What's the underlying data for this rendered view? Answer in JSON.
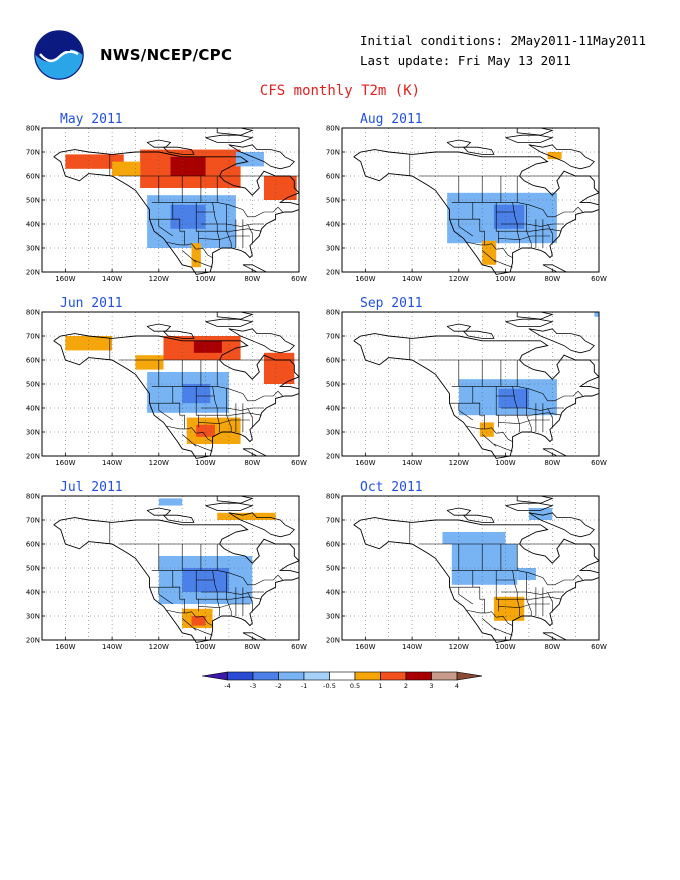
{
  "header": {
    "agency": "NWS/NCEP/CPC",
    "initial_conditions": "Initial conditions: 2May2011-11May2011",
    "last_update": "Last update: Fri May 13 2011",
    "title": "CFS monthly T2m (K)"
  },
  "axes": {
    "y_ticks": [
      "80N",
      "70N",
      "60N",
      "50N",
      "40N",
      "30N",
      "20N"
    ],
    "x_ticks": [
      "160W",
      "140W",
      "120W",
      "100W",
      "80W",
      "60W"
    ]
  },
  "panels": [
    {
      "title": "May 2011",
      "anoms": [
        {
          "t": "pos",
          "lvl": 2,
          "b": [
            -160,
            63,
            -135,
            69
          ]
        },
        {
          "t": "pos",
          "lvl": 2,
          "b": [
            -128,
            55,
            -85,
            71
          ]
        },
        {
          "t": "pos",
          "lvl": 1,
          "b": [
            -140,
            60,
            -128,
            66
          ]
        },
        {
          "t": "pos",
          "lvl": 3,
          "b": [
            -115,
            60,
            -100,
            68
          ]
        },
        {
          "t": "pos",
          "lvl": 2,
          "b": [
            -75,
            50,
            -61,
            60
          ]
        },
        {
          "t": "neg",
          "lvl": 1,
          "b": [
            -125,
            30,
            -87,
            52
          ]
        },
        {
          "t": "neg",
          "lvl": 2,
          "b": [
            -115,
            38,
            -100,
            48
          ]
        },
        {
          "t": "neg",
          "lvl": 1,
          "b": [
            -87,
            64,
            -75,
            70
          ]
        },
        {
          "t": "pos",
          "lvl": 1,
          "b": [
            -106,
            22,
            -102,
            32
          ]
        }
      ]
    },
    {
      "title": "Aug 2011",
      "anoms": [
        {
          "t": "neg",
          "lvl": 1,
          "b": [
            -125,
            32,
            -78,
            53
          ]
        },
        {
          "t": "neg",
          "lvl": 2,
          "b": [
            -105,
            38,
            -92,
            48
          ]
        },
        {
          "t": "pos",
          "lvl": 1,
          "b": [
            -110,
            23,
            -104,
            33
          ]
        },
        {
          "t": "pos",
          "lvl": 1,
          "b": [
            -82,
            67,
            -76,
            70
          ]
        }
      ]
    },
    {
      "title": "Jun 2011",
      "anoms": [
        {
          "t": "pos",
          "lvl": 1,
          "b": [
            -160,
            64,
            -140,
            70
          ]
        },
        {
          "t": "pos",
          "lvl": 2,
          "b": [
            -118,
            60,
            -85,
            70
          ]
        },
        {
          "t": "pos",
          "lvl": 3,
          "b": [
            -105,
            63,
            -93,
            68
          ]
        },
        {
          "t": "pos",
          "lvl": 1,
          "b": [
            -130,
            56,
            -118,
            62
          ]
        },
        {
          "t": "pos",
          "lvl": 2,
          "b": [
            -75,
            50,
            -62,
            63
          ]
        },
        {
          "t": "neg",
          "lvl": 1,
          "b": [
            -125,
            38,
            -90,
            55
          ]
        },
        {
          "t": "neg",
          "lvl": 2,
          "b": [
            -110,
            42,
            -98,
            50
          ]
        },
        {
          "t": "pos",
          "lvl": 1,
          "b": [
            -108,
            25,
            -85,
            36
          ]
        },
        {
          "t": "pos",
          "lvl": 2,
          "b": [
            -104,
            28,
            -96,
            33
          ]
        }
      ]
    },
    {
      "title": "Sep 2011",
      "anoms": [
        {
          "t": "neg",
          "lvl": 1,
          "b": [
            -120,
            37,
            -78,
            52
          ]
        },
        {
          "t": "neg",
          "lvl": 2,
          "b": [
            -103,
            40,
            -90,
            48
          ]
        },
        {
          "t": "pos",
          "lvl": 1,
          "b": [
            -111,
            28,
            -105,
            34
          ]
        },
        {
          "t": "neg",
          "lvl": 1,
          "b": [
            -62,
            78,
            -60,
            80
          ]
        }
      ]
    },
    {
      "title": "Jul 2011",
      "anoms": [
        {
          "t": "pos",
          "lvl": 1,
          "b": [
            -95,
            70,
            -70,
            73
          ]
        },
        {
          "t": "neg",
          "lvl": 1,
          "b": [
            -120,
            35,
            -80,
            55
          ]
        },
        {
          "t": "neg",
          "lvl": 2,
          "b": [
            -110,
            40,
            -90,
            50
          ]
        },
        {
          "t": "pos",
          "lvl": 1,
          "b": [
            -110,
            25,
            -97,
            33
          ]
        },
        {
          "t": "pos",
          "lvl": 2,
          "b": [
            -106,
            26,
            -100,
            30
          ]
        },
        {
          "t": "neg",
          "lvl": 1,
          "b": [
            -120,
            76,
            -110,
            79
          ]
        }
      ]
    },
    {
      "title": "Oct 2011",
      "anoms": [
        {
          "t": "neg",
          "lvl": 1,
          "b": [
            -127,
            60,
            -100,
            65
          ]
        },
        {
          "t": "neg",
          "lvl": 1,
          "b": [
            -123,
            43,
            -95,
            60
          ]
        },
        {
          "t": "neg",
          "lvl": 1,
          "b": [
            -95,
            45,
            -87,
            50
          ]
        },
        {
          "t": "neg",
          "lvl": 1,
          "b": [
            -90,
            70,
            -80,
            75
          ]
        },
        {
          "t": "pos",
          "lvl": 1,
          "b": [
            -105,
            28,
            -92,
            38
          ]
        }
      ]
    }
  ],
  "colorbar": {
    "labels": [
      "-4",
      "-3",
      "-2",
      "-1",
      "-0.5",
      "0.5",
      "1",
      "2",
      "3",
      "4"
    ],
    "colors": [
      "#3c18a8",
      "#2a4cd4",
      "#4a80e8",
      "#78b4f4",
      "#a6d2fa",
      "#ffffff",
      "#f5a60a",
      "#f2501c",
      "#a80000",
      "#c89c8c",
      "#8a4a35"
    ]
  },
  "colors": {
    "pos_1": "#f5a60a",
    "pos_2": "#f2501c",
    "pos_3": "#a80000",
    "neg_1": "#78b4f4",
    "neg_2": "#4a80e8",
    "title": "#e02020",
    "panel_title": "#2050e0"
  }
}
